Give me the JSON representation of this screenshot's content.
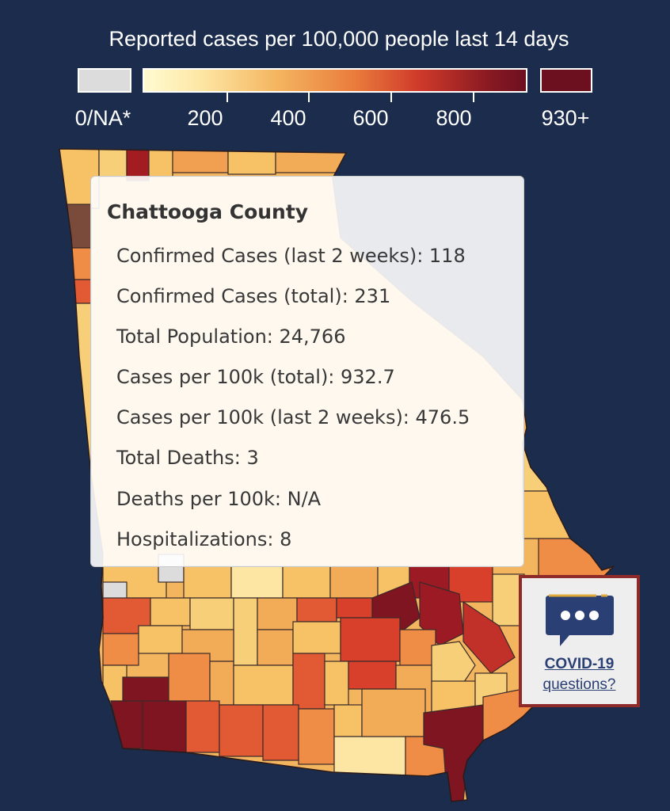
{
  "legend": {
    "title": "Reported cases per 100,000 people last 14 days",
    "na_label": "0/NA*",
    "ticks": [
      "200",
      "400",
      "600",
      "800"
    ],
    "max_label": "930+",
    "na_color": "#dcdcdc",
    "max_color": "#6c1020"
  },
  "tooltip": {
    "county": "Chattooga County",
    "rows": [
      "Confirmed Cases (last 2 weeks): 118",
      "Confirmed Cases (total): 231",
      "Total Population: 24,766",
      "Cases per 100k (total): 932.7",
      "Cases per 100k (last 2 weeks): 476.5",
      "Total Deaths: 3",
      "Deaths per 100k: N/A",
      "Hospitalizations: 8"
    ]
  },
  "help_button": {
    "icon": "chat-bubble-icon",
    "line1": "COVID-19",
    "line2": "questions?"
  },
  "colors": {
    "background": "#1b2c4c",
    "border": "#8e2a2a",
    "link": "#2a3f73"
  }
}
